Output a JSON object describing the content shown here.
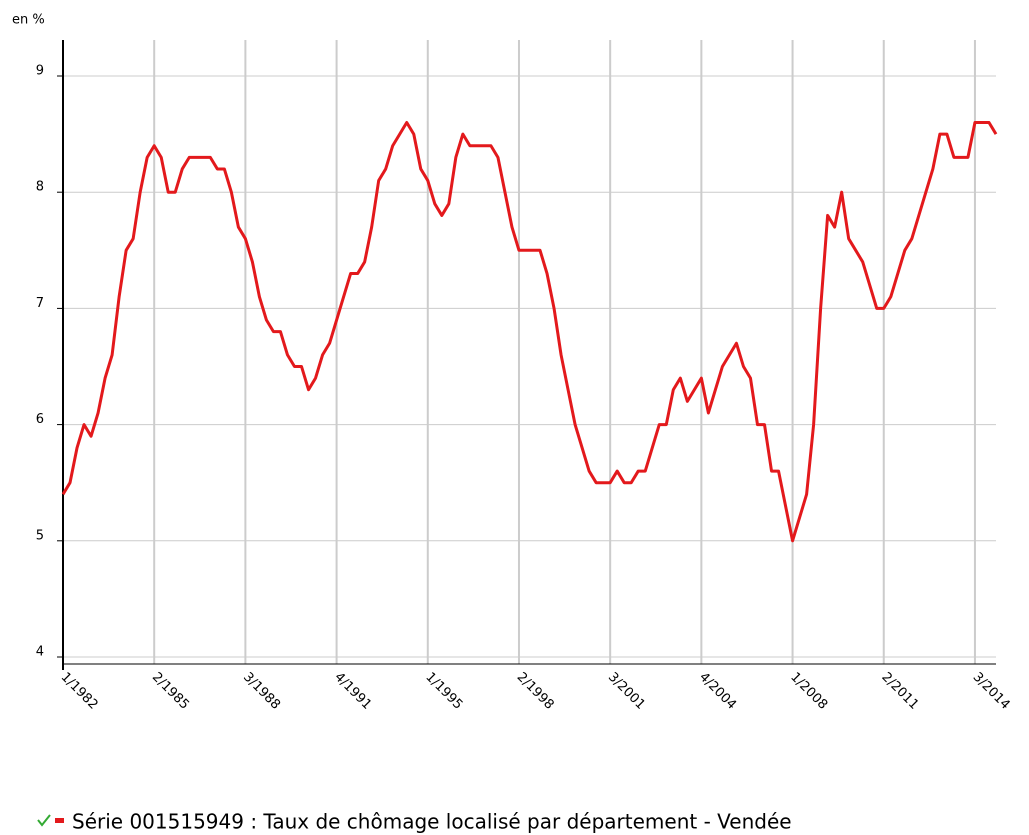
{
  "chart_data": {
    "type": "line",
    "y_label": "en %",
    "categories": [
      "1/1982",
      null,
      null,
      null,
      null,
      null,
      null,
      null,
      null,
      null,
      null,
      null,
      null,
      "2/1985",
      null,
      null,
      null,
      null,
      null,
      null,
      null,
      null,
      null,
      null,
      null,
      null,
      "3/1988",
      null,
      null,
      null,
      null,
      null,
      null,
      null,
      null,
      null,
      null,
      null,
      null,
      "4/1991",
      null,
      null,
      null,
      null,
      null,
      null,
      null,
      null,
      null,
      null,
      null,
      null,
      "1/1995",
      null,
      null,
      null,
      null,
      null,
      null,
      null,
      null,
      null,
      null,
      null,
      null,
      "2/1998",
      null,
      null,
      null,
      null,
      null,
      null,
      null,
      null,
      null,
      null,
      null,
      null,
      "3/2001",
      null,
      null,
      null,
      null,
      null,
      null,
      null,
      null,
      null,
      null,
      null,
      null,
      "4/2004",
      null,
      null,
      null,
      null,
      null,
      null,
      null,
      null,
      null,
      null,
      null,
      null,
      "1/2008",
      null,
      null,
      null,
      null,
      null,
      null,
      null,
      null,
      null,
      null,
      null,
      null,
      "2/2011",
      null,
      null,
      null,
      null,
      null,
      null,
      null,
      null,
      null,
      null,
      null,
      null,
      "3/2014",
      null,
      null,
      null
    ],
    "series": [
      {
        "name": "Série 001515949 : Taux de chômage localisé par département - Vendée",
        "color": "#e3191c",
        "values": [
          5.4,
          5.5,
          5.8,
          6.0,
          5.9,
          6.1,
          6.4,
          6.6,
          7.1,
          7.5,
          7.6,
          8.0,
          8.3,
          8.4,
          8.3,
          8.0,
          8.0,
          8.2,
          8.3,
          8.3,
          8.3,
          8.3,
          8.2,
          8.2,
          8.0,
          7.7,
          7.6,
          7.4,
          7.1,
          6.9,
          6.8,
          6.8,
          6.6,
          6.5,
          6.5,
          6.3,
          6.4,
          6.6,
          6.7,
          6.9,
          7.1,
          7.3,
          7.3,
          7.4,
          7.7,
          8.1,
          8.2,
          8.4,
          8.5,
          8.6,
          8.5,
          8.2,
          8.1,
          7.9,
          7.8,
          7.9,
          8.3,
          8.5,
          8.4,
          8.4,
          8.4,
          8.4,
          8.3,
          8.0,
          7.7,
          7.5,
          7.5,
          7.5,
          7.5,
          7.3,
          7.0,
          6.6,
          6.3,
          6.0,
          5.8,
          5.6,
          5.5,
          5.5,
          5.5,
          5.6,
          5.5,
          5.5,
          5.6,
          5.6,
          5.8,
          6.0,
          6.0,
          6.3,
          6.4,
          6.2,
          6.3,
          6.4,
          6.1,
          6.3,
          6.5,
          6.6,
          6.7,
          6.5,
          6.4,
          6.0,
          6.0,
          5.6,
          5.6,
          5.3,
          5.0,
          5.2,
          5.4,
          6.0,
          7.0,
          7.8,
          7.7,
          8.0,
          7.6,
          7.5,
          7.4,
          7.2,
          7.0,
          7.0,
          7.1,
          7.3,
          7.5,
          7.6,
          7.8,
          8.0,
          8.2,
          8.5,
          8.5,
          8.3,
          8.3,
          8.3,
          8.6,
          8.6,
          8.6,
          8.5
        ]
      }
    ],
    "ylim": [
      4,
      9
    ],
    "yticks": [
      4,
      5,
      6,
      7,
      8,
      9
    ],
    "grid": true
  }
}
